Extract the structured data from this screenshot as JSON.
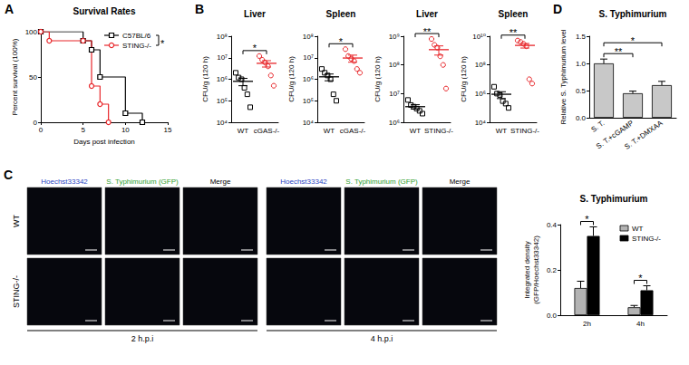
{
  "chart_data": [
    {
      "panel": "A",
      "type": "line",
      "title": "Survival Rates",
      "x_label": "Days post infection",
      "y_label": "Percent survival (100%)",
      "xlim": [
        0,
        15
      ],
      "xticks": [
        0,
        5,
        10,
        15
      ],
      "ylim": [
        0,
        100
      ],
      "yticks": [
        0,
        50,
        100
      ],
      "grid": false,
      "legend": "upper right",
      "series": [
        {
          "name": "C57BL/6",
          "color": "#000000",
          "marker": "square",
          "line_style": "step",
          "x": [
            0,
            5,
            6,
            7,
            10,
            12
          ],
          "values": [
            100,
            90,
            80,
            50,
            10,
            0
          ]
        },
        {
          "name": "STING-/-",
          "color": "#e8262a",
          "marker": "circle",
          "line_style": "step",
          "x": [
            0,
            1,
            5,
            6,
            7,
            8
          ],
          "values": [
            100,
            90,
            90,
            40,
            20,
            0
          ]
        }
      ],
      "significance": [
        {
          "between": [
            "C57BL/6",
            "STING-/-"
          ],
          "label": "*"
        }
      ]
    },
    {
      "panel": "B",
      "type": "scatter",
      "title": "Liver",
      "y_label": "CFU/g (120 h)",
      "log": "y",
      "grid": false,
      "ylim": [
        10000,
        100000000
      ],
      "yticks": [
        {
          "value": 10000,
          "label": "10⁴"
        },
        {
          "value": 100000,
          "label": "10⁵"
        },
        {
          "value": 1000000,
          "label": "10⁶"
        },
        {
          "value": 10000000,
          "label": "10⁷"
        },
        {
          "value": 100000000,
          "label": "10⁸"
        }
      ],
      "series": [
        {
          "name": "WT",
          "color": "#000000",
          "marker": "square",
          "values": [
            2000000,
            1200000,
            1000000,
            400000,
            200000,
            50000
          ],
          "mean": 800000,
          "error": 300000
        },
        {
          "name": "cGAS-/-",
          "color": "#e8262a",
          "marker": "circle",
          "values": [
            12000000,
            8000000,
            6000000,
            4000000,
            1500000,
            500000
          ],
          "mean": 5500000,
          "error": 1800000
        }
      ],
      "significance": [
        {
          "between": [
            "WT",
            "cGAS-/-"
          ],
          "label": "*"
        }
      ]
    },
    {
      "type": "scatter",
      "title": "Spleen",
      "y_label": "CFU/g (120 h)",
      "log": "y",
      "grid": false,
      "ylim": [
        10000,
        100000000
      ],
      "yticks": [
        {
          "value": 10000,
          "label": "10⁴"
        },
        {
          "value": 100000,
          "label": "10⁵"
        },
        {
          "value": 1000000,
          "label": "10⁶"
        },
        {
          "value": 10000000,
          "label": "10⁷"
        },
        {
          "value": 100000000,
          "label": "10⁸"
        }
      ],
      "series": [
        {
          "name": "WT",
          "color": "#000000",
          "marker": "square",
          "values": [
            3000000,
            2000000,
            1500000,
            1000000,
            200000,
            100000
          ],
          "mean": 1300000,
          "error": 450000
        },
        {
          "name": "cGAS-/-",
          "color": "#e8262a",
          "marker": "circle",
          "values": [
            25000000,
            12000000,
            9000000,
            7000000,
            3000000,
            2000000
          ],
          "mean": 9700000,
          "error": 3500000
        }
      ],
      "significance": [
        {
          "between": [
            "WT",
            "cGAS-/-"
          ],
          "label": "*"
        }
      ]
    },
    {
      "type": "scatter",
      "title": "Liver",
      "y_label": "CFU/g (120 h)",
      "log": "y",
      "grid": false,
      "ylim": [
        1000000,
        1000000000
      ],
      "yticks": [
        {
          "value": 1000000,
          "label": "10⁶"
        },
        {
          "value": 10000000,
          "label": "10⁷"
        },
        {
          "value": 100000000,
          "label": "10⁸"
        },
        {
          "value": 1000000000,
          "label": "10⁹"
        }
      ],
      "series": [
        {
          "name": "WT",
          "color": "#000000",
          "marker": "square",
          "values": [
            6000000,
            4000000,
            3500000,
            3000000,
            2500000,
            2000000
          ],
          "mean": 3500000,
          "error": 600000
        },
        {
          "name": "STING-/-",
          "color": "#e8262a",
          "marker": "circle",
          "values": [
            800000000,
            500000000,
            400000000,
            200000000,
            100000000,
            15000000
          ],
          "mean": 340000000,
          "error": 120000000
        }
      ],
      "significance": [
        {
          "between": [
            "WT",
            "STING-/-"
          ],
          "label": "**"
        }
      ]
    },
    {
      "type": "scatter",
      "title": "Spleen",
      "y_label": "CFU/g (120 h)",
      "log": "y",
      "grid": false,
      "ylim": [
        10000,
        10000000000
      ],
      "yticks": [
        {
          "value": 10000,
          "label": "10⁴"
        },
        {
          "value": 1000000,
          "label": "10⁶"
        },
        {
          "value": 100000000,
          "label": "10⁸"
        },
        {
          "value": 10000000000,
          "label": "10¹⁰"
        }
      ],
      "series": [
        {
          "name": "WT",
          "color": "#000000",
          "marker": "square",
          "values": [
            3000000,
            1000000,
            800000,
            300000,
            200000,
            100000
          ],
          "mean": 900000,
          "error": 450000
        },
        {
          "name": "STING-/-",
          "color": "#e8262a",
          "marker": "circle",
          "values": [
            5000000000,
            4000000000,
            3000000000,
            2000000000,
            10000000,
            5000000
          ],
          "mean": 2300000000,
          "error": 800000000
        }
      ],
      "significance": [
        {
          "between": [
            "WT",
            "STING-/-"
          ],
          "label": "**"
        }
      ]
    },
    {
      "panel": "D",
      "type": "bar",
      "title": "S. Typhimurium",
      "y_label": "Relative S. Typhimurium level",
      "grid": false,
      "categories": [
        "S. T.",
        "S. T.+cGAMP",
        "S. T.+DMXAA"
      ],
      "values": [
        1.0,
        0.45,
        0.6
      ],
      "errors": [
        0.08,
        0.04,
        0.07
      ],
      "color": "#c8c8c8",
      "ylim": [
        0,
        1.5
      ],
      "yticks": [
        {
          "value": 0,
          "label": "0.0"
        },
        0.5,
        {
          "value": 1,
          "label": "1.0"
        },
        1.5
      ],
      "significance": [
        {
          "between": [
            "S. T.",
            "S. T.+cGAMP"
          ],
          "label": "**"
        },
        {
          "between": [
            "S. T.",
            "S. T.+DMXAA"
          ],
          "label": "*"
        }
      ]
    },
    {
      "type": "bar",
      "title": "S. Typhimurium",
      "y_label": "Integrated density (GFP/Hoechst33342)",
      "grid": false,
      "legend": "upper right",
      "categories": [
        "2h",
        "4h"
      ],
      "series": [
        {
          "name": "WT",
          "color": "#b3b3b3",
          "values": [
            0.12,
            0.035
          ],
          "errors": [
            0.03,
            0.008
          ]
        },
        {
          "name": "STING-/-",
          "color": "#000000",
          "values": [
            0.35,
            0.11
          ],
          "errors": [
            0.04,
            0.02
          ]
        }
      ],
      "ylim": [
        0,
        0.4
      ],
      "yticks": [
        {
          "value": 0,
          "label": "0.0"
        },
        0.2,
        0.4
      ],
      "significance": [
        {
          "category": "2h",
          "between": [
            "WT",
            "STING-/-"
          ],
          "label": "*"
        },
        {
          "category": "4h",
          "between": [
            "WT",
            "STING-/-"
          ],
          "label": "*"
        }
      ]
    }
  ],
  "micrographs": {
    "panel": "C",
    "columns": [
      "Hoechst33342",
      "S. Typhimurium (GFP)",
      "Merge"
    ],
    "rows": [
      "WT",
      "STING-/-"
    ],
    "timepoints": [
      "2 h.p.i",
      "4 h.p.i"
    ]
  }
}
